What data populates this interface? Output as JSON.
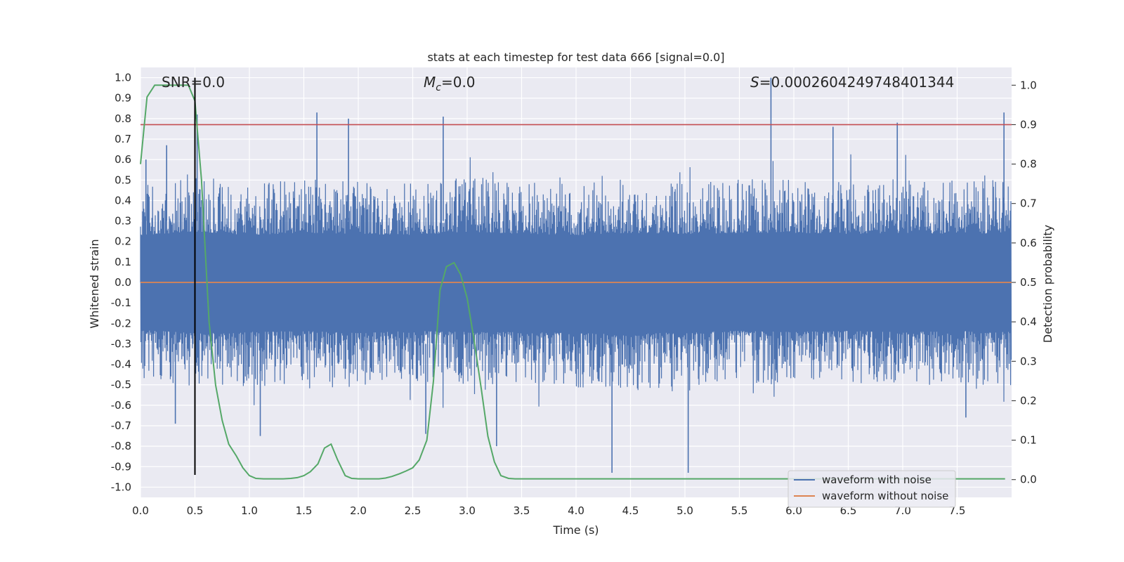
{
  "chart_data": {
    "type": "line",
    "title": "stats at each timestep for test data 666 [signal=0.0]",
    "xlabel": "Time (s)",
    "ylabel": "Whitened strain",
    "y2label": "Detection probability",
    "xlim": [
      0.0,
      8.0
    ],
    "ylim": [
      -1.05,
      1.05
    ],
    "y2lim": [
      -0.045,
      1.045
    ],
    "x_ticks": [
      "0.0",
      "0.5",
      "1.0",
      "1.5",
      "2.0",
      "2.5",
      "3.0",
      "3.5",
      "4.0",
      "4.5",
      "5.0",
      "5.5",
      "6.0",
      "6.5",
      "7.0",
      "7.5"
    ],
    "y_ticks": [
      "1.0",
      "0.9",
      "0.8",
      "0.7",
      "0.6",
      "0.5",
      "0.4",
      "0.3",
      "0.2",
      "0.1",
      "0.0",
      "-0.1",
      "-0.2",
      "-0.3",
      "-0.4",
      "-0.5",
      "-0.6",
      "-0.7",
      "-0.8",
      "-0.9",
      "-1.0"
    ],
    "y2_ticks": [
      "1.0",
      "0.9",
      "0.8",
      "0.7",
      "0.6",
      "0.5",
      "0.4",
      "0.3",
      "0.2",
      "0.1",
      "0.0"
    ],
    "grid": true,
    "legend_position": "bottom-right",
    "annotations": {
      "snr": "SNR=0.0",
      "mc_symbol": "M",
      "mc_sub": "c",
      "mc_value": "=0.0",
      "s_symbol": "S",
      "s_value": "=0.0002604249748401344"
    },
    "series": [
      {
        "name": "waveform with noise",
        "color": "#4c72b0",
        "kind": "noise",
        "envelope": {
          "x": [
            0.0,
            0.5,
            1.0,
            1.5,
            2.0,
            2.5,
            3.0,
            3.5,
            4.0,
            4.5,
            5.0,
            5.5,
            6.0,
            6.5,
            7.0,
            7.5,
            8.0
          ],
          "upper_typical": [
            0.42,
            0.45,
            0.42,
            0.44,
            0.43,
            0.42,
            0.45,
            0.43,
            0.42,
            0.44,
            0.43,
            0.44,
            0.44,
            0.43,
            0.44,
            0.43,
            0.44
          ],
          "lower_typical": [
            -0.42,
            -0.45,
            -0.44,
            -0.43,
            -0.45,
            -0.43,
            -0.44,
            -0.44,
            -0.45,
            -0.46,
            -0.44,
            -0.43,
            -0.44,
            -0.43,
            -0.44,
            -0.43,
            -0.44
          ]
        },
        "peaks": [
          {
            "x": 0.05,
            "y": 0.6
          },
          {
            "x": 0.24,
            "y": 0.67
          },
          {
            "x": 0.32,
            "y": -0.69
          },
          {
            "x": 0.52,
            "y": 0.82
          },
          {
            "x": 1.1,
            "y": -0.75
          },
          {
            "x": 1.62,
            "y": 0.83
          },
          {
            "x": 1.91,
            "y": 0.8
          },
          {
            "x": 2.62,
            "y": -0.74
          },
          {
            "x": 2.78,
            "y": 0.81
          },
          {
            "x": 3.27,
            "y": -0.8
          },
          {
            "x": 4.33,
            "y": -0.93
          },
          {
            "x": 5.03,
            "y": -0.93
          },
          {
            "x": 5.79,
            "y": 1.0
          },
          {
            "x": 6.36,
            "y": 0.76
          },
          {
            "x": 6.95,
            "y": 0.78
          },
          {
            "x": 7.58,
            "y": -0.66
          },
          {
            "x": 7.93,
            "y": 0.83
          }
        ]
      },
      {
        "name": "waveform without noise",
        "color": "#dd8452",
        "x": [
          0.0,
          8.0
        ],
        "y": [
          0.0,
          0.0
        ]
      },
      {
        "name": "",
        "color": "#55a868",
        "axis": "right",
        "x": [
          0.0,
          0.06,
          0.13,
          0.19,
          0.25,
          0.31,
          0.38,
          0.44,
          0.5,
          0.56,
          0.63,
          0.69,
          0.75,
          0.81,
          0.88,
          0.94,
          1.0,
          1.06,
          1.13,
          1.19,
          1.25,
          1.31,
          1.38,
          1.44,
          1.5,
          1.56,
          1.63,
          1.69,
          1.75,
          1.81,
          1.88,
          1.94,
          2.0,
          2.06,
          2.13,
          2.19,
          2.25,
          2.31,
          2.38,
          2.44,
          2.5,
          2.56,
          2.63,
          2.69,
          2.75,
          2.81,
          2.88,
          2.94,
          3.0,
          3.06,
          3.13,
          3.19,
          3.25,
          3.31,
          3.38,
          3.44,
          3.5,
          3.75,
          4.0,
          4.25,
          4.5,
          5.0,
          5.5,
          6.0,
          6.5,
          7.0,
          7.5,
          7.94
        ],
        "y": [
          0.8,
          0.97,
          1.0,
          1.0,
          1.0,
          1.0,
          1.0,
          1.0,
          0.96,
          0.76,
          0.4,
          0.24,
          0.15,
          0.09,
          0.06,
          0.03,
          0.01,
          0.003,
          0.002,
          0.002,
          0.002,
          0.002,
          0.003,
          0.005,
          0.01,
          0.02,
          0.04,
          0.08,
          0.09,
          0.05,
          0.01,
          0.003,
          0.002,
          0.002,
          0.002,
          0.002,
          0.004,
          0.008,
          0.015,
          0.022,
          0.03,
          0.05,
          0.1,
          0.25,
          0.48,
          0.54,
          0.55,
          0.52,
          0.46,
          0.36,
          0.23,
          0.11,
          0.045,
          0.01,
          0.003,
          0.002,
          0.002,
          0.002,
          0.002,
          0.002,
          0.002,
          0.002,
          0.002,
          0.002,
          0.002,
          0.002,
          0.002,
          0.002
        ]
      }
    ],
    "hlines": [
      {
        "y": 0.9,
        "axis": "right",
        "color": "#c44e52"
      }
    ],
    "vlines": [
      {
        "x": 0.5,
        "y_from": -0.94,
        "y_to": 1.0,
        "color": "#000000"
      }
    ]
  }
}
